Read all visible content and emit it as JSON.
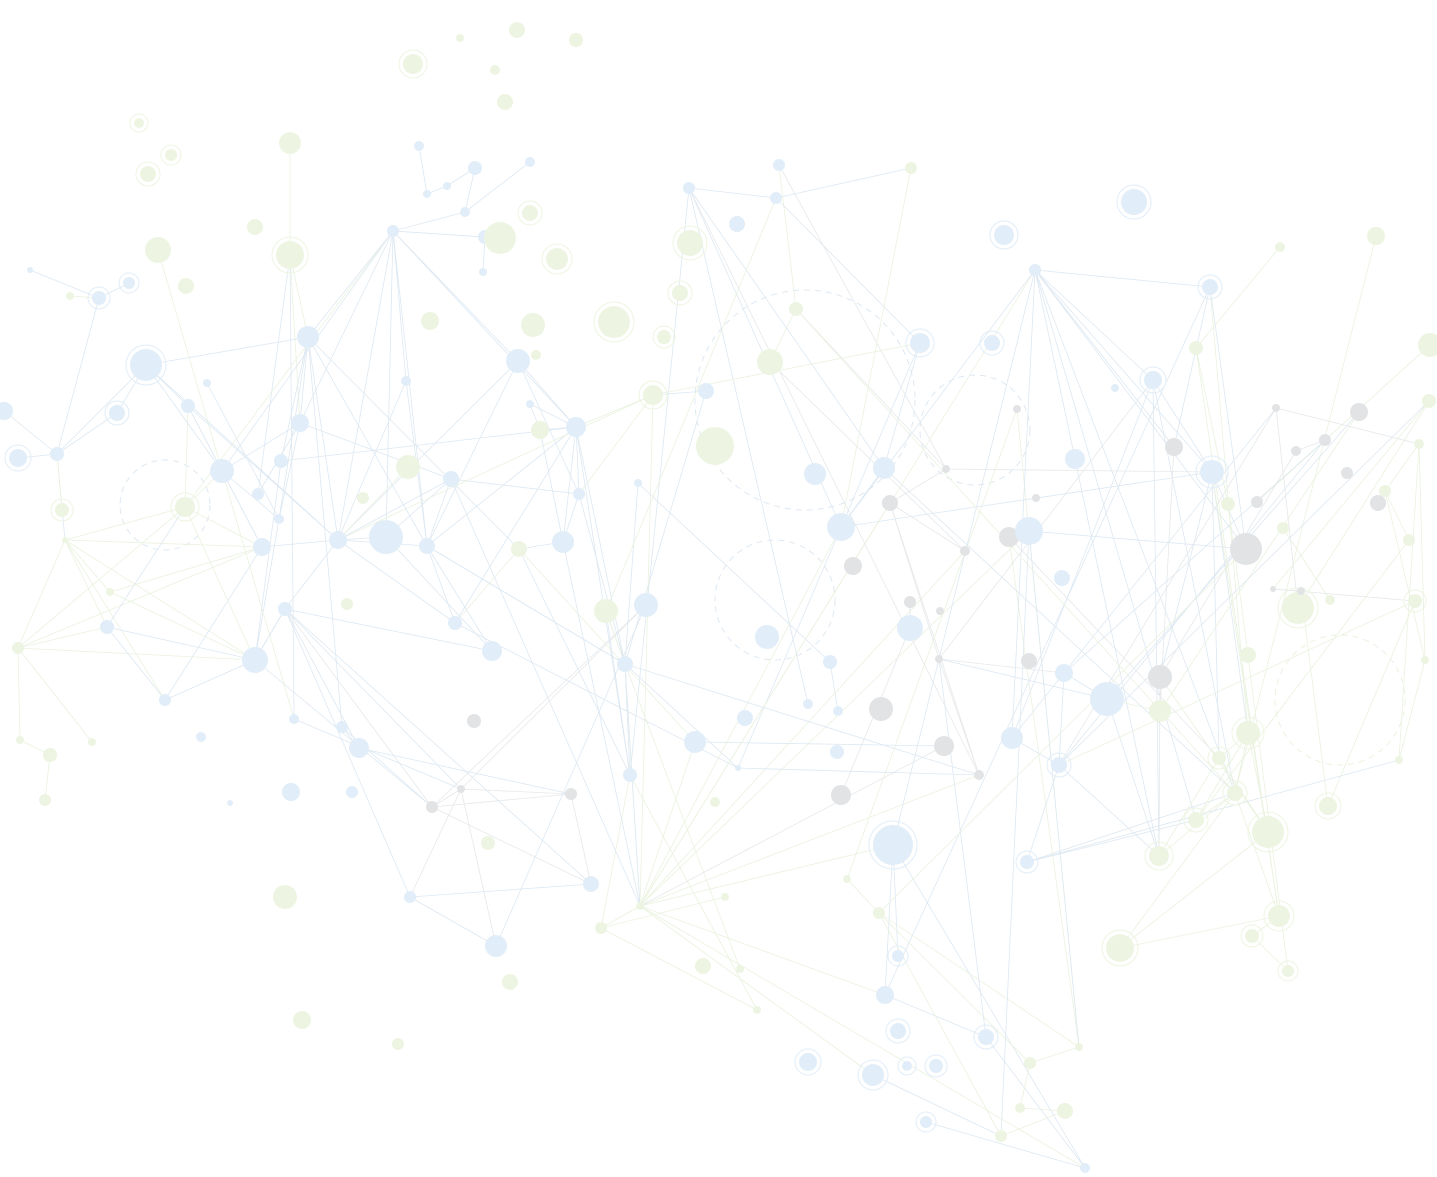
{
  "background": {
    "base_color": "#ffffff",
    "palette": {
      "blue_node": "#e1edf8",
      "blue_edge": "#dde8f2",
      "green_node": "#edf5e2",
      "green_edge": "#eaf2df",
      "gray_node": "#e2e3e5",
      "gray_edge": "#e6e8ea"
    },
    "pattern": "network-graph"
  }
}
